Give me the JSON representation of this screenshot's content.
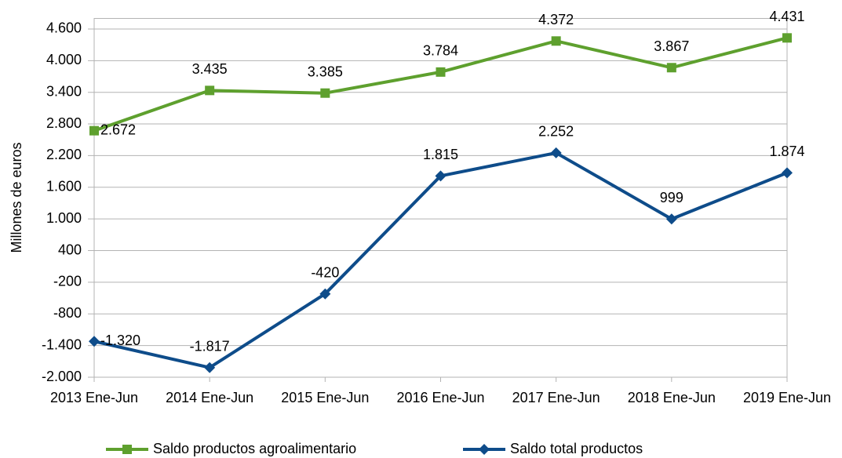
{
  "chart_data": {
    "type": "line",
    "y_axis_label": "Millones de euros",
    "categories": [
      "2013 Ene-Jun",
      "2014 Ene-Jun",
      "2015 Ene-Jun",
      "2016 Ene-Jun",
      "2017 Ene-Jun",
      "2018 Ene-Jun",
      "2019 Ene-Jun"
    ],
    "series": [
      {
        "name": "Saldo productos agroalimentario",
        "color": "#5ea02e",
        "marker": "square",
        "values": [
          2672,
          3435,
          3385,
          3784,
          4372,
          3867,
          4431
        ],
        "value_labels": [
          "2.672",
          "3.435",
          "3.385",
          "3.784",
          "4.372",
          "3.867",
          "4.431"
        ]
      },
      {
        "name": "Saldo total productos",
        "color": "#0e4c8a",
        "marker": "diamond",
        "values": [
          -1320,
          -1817,
          -420,
          1815,
          2252,
          999,
          1874
        ],
        "value_labels": [
          "-1.320",
          "-1.817",
          "-420",
          "1.815",
          "2.252",
          "999",
          "1.874"
        ]
      }
    ],
    "ylim": [
      -2000,
      4800
    ],
    "yticks": [
      {
        "value": -2000,
        "label": "-2.000"
      },
      {
        "value": -1400,
        "label": "-1.400"
      },
      -800,
      -200,
      400,
      {
        "value": 1000,
        "label": "1.000"
      },
      {
        "value": 1600,
        "label": "1.600"
      },
      {
        "value": 2200,
        "label": "2.200"
      },
      {
        "value": 2800,
        "label": "2.800"
      },
      {
        "value": 3400,
        "label": "3.400"
      },
      {
        "value": 4000,
        "label": "4.000"
      },
      {
        "value": 4600,
        "label": "4.600"
      }
    ],
    "grid": true,
    "legend": "bottom"
  }
}
